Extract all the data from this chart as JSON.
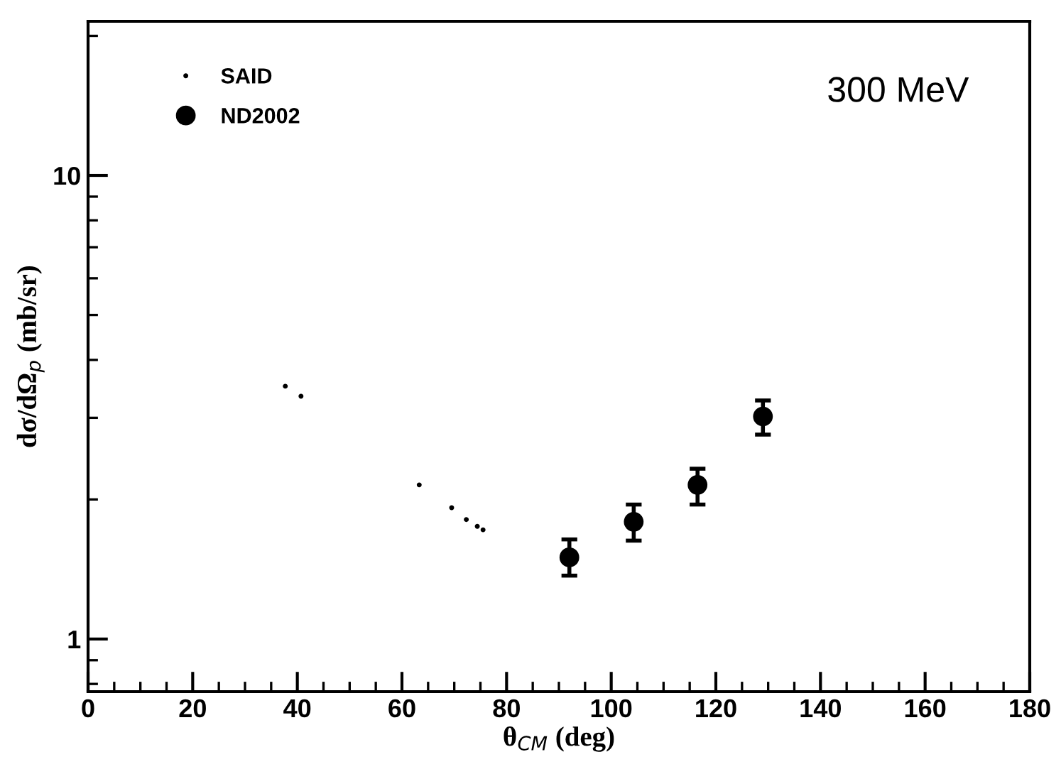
{
  "chart_data": {
    "type": "scatter",
    "xlabel": "θ$_{CM}$ (deg)",
    "ylabel": "dσ/dΩ$_{p}$ (mb/sr)",
    "annotations": [
      "300 MeV"
    ],
    "xlim": [
      0,
      180
    ],
    "xticks": [
      0,
      20,
      40,
      60,
      80,
      100,
      120,
      140,
      160,
      180
    ],
    "ylim": [
      0.77,
      21.5
    ],
    "yticks": [
      1,
      10
    ],
    "log": true,
    "legend": "top left",
    "grid": false,
    "series": [
      {
        "name": "SAID",
        "marker": "circle",
        "color": "#000000",
        "x": [
          37.7,
          40.7,
          63.3,
          69.5,
          72.3,
          74.4,
          75.5
        ],
        "values": [
          3.51,
          3.34,
          2.15,
          1.92,
          1.81,
          1.75,
          1.72
        ]
      },
      {
        "name": "ND2002",
        "marker": "circle",
        "color": "#000000",
        "x": [
          92.0,
          104.3,
          116.5,
          129.0
        ],
        "values": [
          1.5,
          1.79,
          2.15,
          3.02
        ],
        "errors": [
          [
            1.37,
            1.64
          ],
          [
            1.63,
            1.95
          ],
          [
            1.95,
            2.33
          ],
          [
            2.76,
            3.27
          ]
        ]
      }
    ]
  }
}
